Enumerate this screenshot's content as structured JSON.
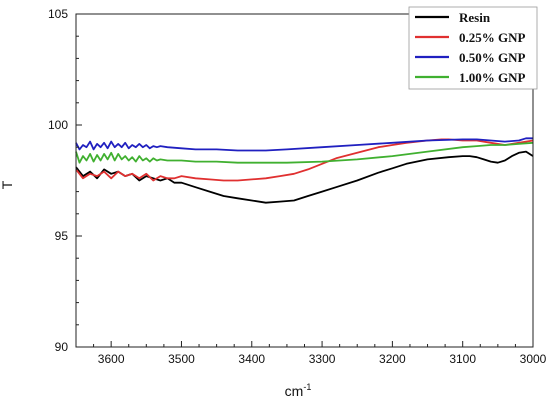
{
  "chart_data": {
    "type": "line",
    "title": "",
    "xlabel": "cm",
    "xlabel_sup": "-1",
    "ylabel": "T",
    "xlim": [
      3650,
      3000
    ],
    "ylim": [
      90,
      105
    ],
    "x_reversed": true,
    "x_ticks": [
      3600,
      3500,
      3400,
      3300,
      3200,
      3100,
      3000
    ],
    "y_ticks": [
      90,
      95,
      100,
      105
    ],
    "grid": false,
    "legend_position": "top-right",
    "series": [
      {
        "name": "Resin",
        "color": "#000000",
        "x": [
          3650,
          3640,
          3630,
          3620,
          3610,
          3600,
          3590,
          3580,
          3570,
          3560,
          3550,
          3540,
          3530,
          3520,
          3510,
          3500,
          3480,
          3460,
          3440,
          3420,
          3400,
          3380,
          3360,
          3340,
          3320,
          3300,
          3280,
          3250,
          3220,
          3200,
          3180,
          3150,
          3120,
          3100,
          3090,
          3080,
          3070,
          3060,
          3050,
          3040,
          3030,
          3020,
          3010,
          3005,
          3000
        ],
        "values": [
          98.1,
          97.7,
          97.9,
          97.6,
          98.0,
          97.8,
          97.9,
          97.7,
          97.8,
          97.5,
          97.7,
          97.6,
          97.5,
          97.6,
          97.4,
          97.4,
          97.2,
          97.0,
          96.8,
          96.7,
          96.6,
          96.5,
          96.55,
          96.6,
          96.8,
          97.0,
          97.2,
          97.5,
          97.85,
          98.05,
          98.25,
          98.45,
          98.55,
          98.6,
          98.6,
          98.55,
          98.45,
          98.35,
          98.3,
          98.4,
          98.6,
          98.75,
          98.8,
          98.7,
          98.6
        ]
      },
      {
        "name": "0.25% GNP",
        "color": "#e03030",
        "x": [
          3650,
          3640,
          3630,
          3620,
          3610,
          3600,
          3590,
          3580,
          3570,
          3560,
          3550,
          3540,
          3530,
          3520,
          3510,
          3500,
          3480,
          3460,
          3440,
          3420,
          3400,
          3380,
          3360,
          3340,
          3320,
          3300,
          3280,
          3250,
          3220,
          3200,
          3180,
          3150,
          3130,
          3120,
          3100,
          3080,
          3060,
          3040,
          3020,
          3000
        ],
        "values": [
          98.0,
          97.6,
          97.8,
          97.7,
          97.9,
          97.6,
          97.9,
          97.7,
          97.8,
          97.6,
          97.8,
          97.5,
          97.7,
          97.6,
          97.6,
          97.7,
          97.6,
          97.55,
          97.5,
          97.5,
          97.55,
          97.6,
          97.7,
          97.8,
          98.0,
          98.25,
          98.5,
          98.75,
          99.0,
          99.1,
          99.2,
          99.3,
          99.35,
          99.35,
          99.3,
          99.3,
          99.2,
          99.1,
          99.2,
          99.3
        ]
      },
      {
        "name": "0.50% GNP",
        "color": "#2020c0",
        "x": [
          3650,
          3645,
          3640,
          3635,
          3630,
          3625,
          3620,
          3615,
          3610,
          3605,
          3600,
          3595,
          3590,
          3585,
          3580,
          3575,
          3570,
          3565,
          3560,
          3555,
          3550,
          3545,
          3540,
          3535,
          3530,
          3520,
          3500,
          3480,
          3450,
          3420,
          3400,
          3380,
          3350,
          3300,
          3250,
          3200,
          3150,
          3100,
          3080,
          3060,
          3040,
          3020,
          3010,
          3000
        ],
        "values": [
          99.2,
          98.9,
          99.1,
          99.0,
          99.25,
          98.9,
          99.15,
          99.0,
          99.2,
          98.95,
          99.25,
          99.0,
          99.15,
          99.0,
          99.2,
          98.95,
          99.1,
          99.0,
          99.15,
          99.0,
          99.1,
          98.95,
          99.05,
          99.0,
          99.05,
          99.0,
          98.95,
          98.9,
          98.9,
          98.85,
          98.85,
          98.85,
          98.9,
          99.0,
          99.1,
          99.2,
          99.3,
          99.35,
          99.35,
          99.3,
          99.25,
          99.3,
          99.4,
          99.4
        ]
      },
      {
        "name": "1.00% GNP",
        "color": "#40b030",
        "x": [
          3650,
          3645,
          3640,
          3635,
          3630,
          3625,
          3620,
          3615,
          3610,
          3605,
          3600,
          3595,
          3590,
          3585,
          3580,
          3575,
          3570,
          3565,
          3560,
          3555,
          3550,
          3545,
          3540,
          3535,
          3530,
          3520,
          3500,
          3480,
          3450,
          3420,
          3400,
          3380,
          3350,
          3300,
          3250,
          3200,
          3150,
          3100,
          3080,
          3060,
          3040,
          3020,
          3000
        ],
        "values": [
          98.8,
          98.3,
          98.6,
          98.4,
          98.7,
          98.35,
          98.65,
          98.4,
          98.7,
          98.45,
          98.75,
          98.4,
          98.7,
          98.45,
          98.6,
          98.4,
          98.55,
          98.35,
          98.6,
          98.4,
          98.5,
          98.35,
          98.5,
          98.4,
          98.45,
          98.4,
          98.4,
          98.35,
          98.35,
          98.3,
          98.3,
          98.3,
          98.3,
          98.35,
          98.45,
          98.6,
          98.8,
          99.0,
          99.05,
          99.1,
          99.1,
          99.15,
          99.2
        ]
      }
    ]
  }
}
